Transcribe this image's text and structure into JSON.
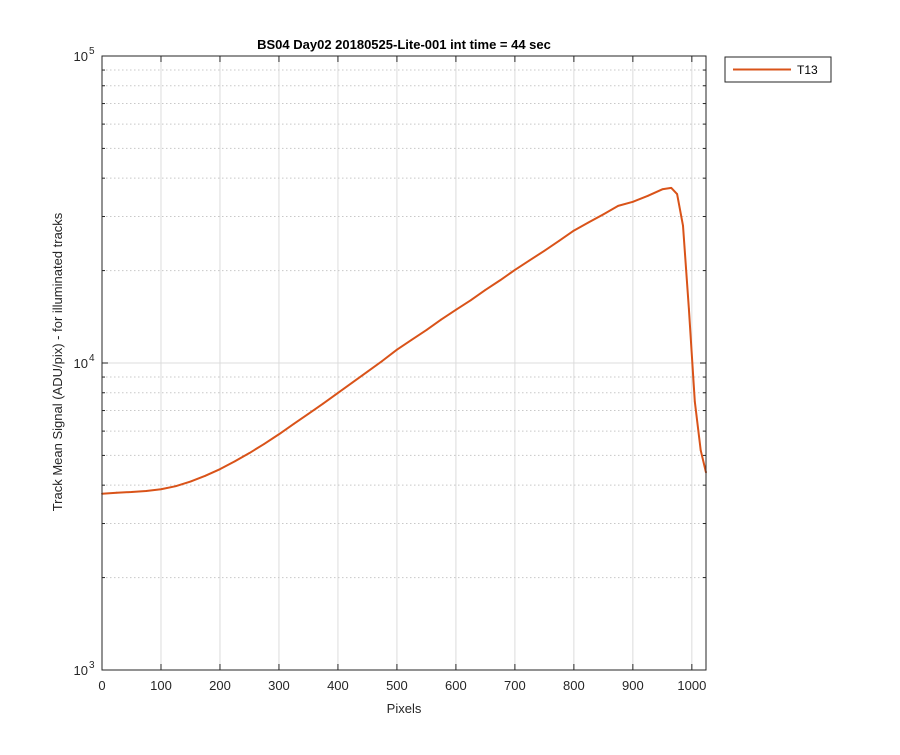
{
  "chart_data": {
    "type": "line",
    "title": "BS04 Day02 20180525-Lite-001 int time = 44 sec",
    "xlabel": "Pixels",
    "ylabel": "Track Mean Signal (ADU/pix) - for illuminated tracks",
    "xlim": [
      0,
      1024
    ],
    "ylim": [
      1000,
      100000
    ],
    "yscale": "log",
    "grid": true,
    "legend_position": "outside-top-right",
    "x_ticks": [
      0,
      100,
      200,
      300,
      400,
      500,
      600,
      700,
      800,
      900,
      1000
    ],
    "x_tick_labels": [
      "0",
      "100",
      "200",
      "300",
      "400",
      "500",
      "600",
      "700",
      "800",
      "900",
      "1000"
    ],
    "y_ticks": [
      1000,
      10000,
      100000
    ],
    "y_tick_base_labels": [
      "10",
      "10",
      "10"
    ],
    "y_tick_exponent_labels": [
      "3",
      "4",
      "5"
    ],
    "series": [
      {
        "name": "T13",
        "color": "#D95319",
        "x": [
          0,
          25,
          50,
          75,
          100,
          125,
          150,
          175,
          200,
          225,
          250,
          275,
          300,
          325,
          350,
          375,
          400,
          425,
          450,
          475,
          500,
          525,
          550,
          575,
          600,
          625,
          650,
          675,
          700,
          725,
          750,
          775,
          800,
          825,
          850,
          875,
          900,
          925,
          950,
          965,
          975,
          985,
          995,
          1005,
          1015,
          1024
        ],
        "y": [
          3750,
          3780,
          3800,
          3830,
          3880,
          3970,
          4110,
          4290,
          4510,
          4780,
          5090,
          5450,
          5860,
          6330,
          6830,
          7380,
          7990,
          8650,
          9370,
          10150,
          11050,
          11900,
          12800,
          13850,
          14900,
          16000,
          17300,
          18600,
          20100,
          21600,
          23200,
          25000,
          27000,
          28700,
          30500,
          32500,
          33500,
          35000,
          36800,
          37200,
          35500,
          28000,
          15000,
          7500,
          5200,
          4400
        ]
      }
    ]
  }
}
